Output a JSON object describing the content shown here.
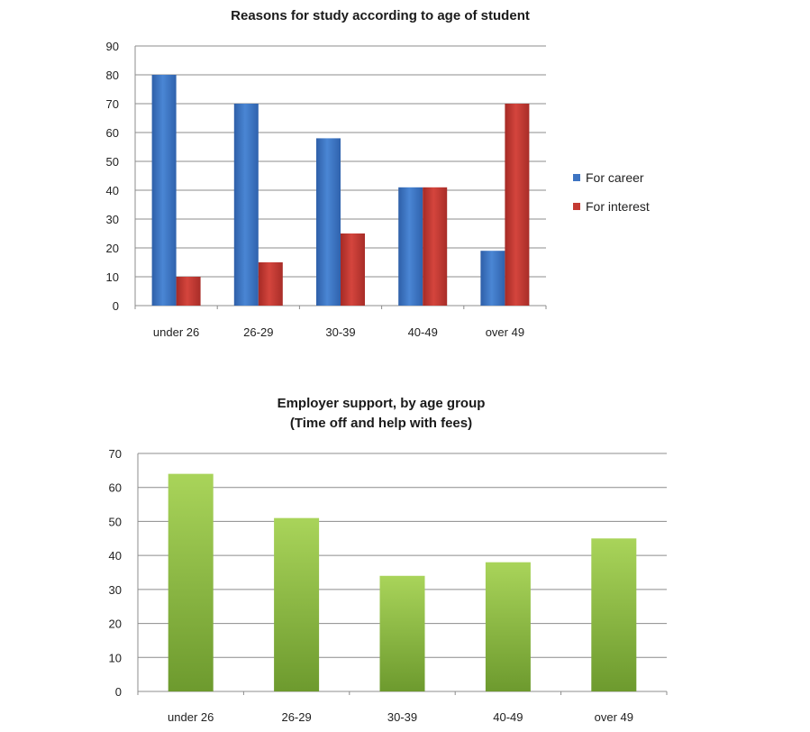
{
  "chart_data": [
    {
      "type": "bar",
      "title": "Reasons  for study according to age of student",
      "categories": [
        "under 26",
        "26-29",
        "30-39",
        "40-49",
        "over 49"
      ],
      "series": [
        {
          "name": "For career",
          "values": [
            80,
            70,
            58,
            41,
            19
          ],
          "color": "#3d74c2"
        },
        {
          "name": "For interest",
          "values": [
            10,
            15,
            25,
            41,
            70
          ],
          "color": "#c43a33"
        }
      ],
      "ylim": [
        0,
        90
      ],
      "yticks": [
        0,
        10,
        20,
        30,
        40,
        50,
        60,
        70,
        80,
        90
      ],
      "grid": true,
      "legend": "right"
    },
    {
      "type": "bar",
      "title": "Employer support, by age group",
      "subtitle": "(Time off and help with fees)",
      "categories": [
        "under 26",
        "26-29",
        "30-39",
        "40-49",
        "over 49"
      ],
      "series": [
        {
          "values": [
            64,
            51,
            34,
            38,
            45
          ],
          "color": "#8fc043"
        }
      ],
      "ylim": [
        0,
        70
      ],
      "yticks": [
        0,
        10,
        20,
        30,
        40,
        50,
        60,
        70
      ],
      "grid": true,
      "legend": "none"
    }
  ]
}
